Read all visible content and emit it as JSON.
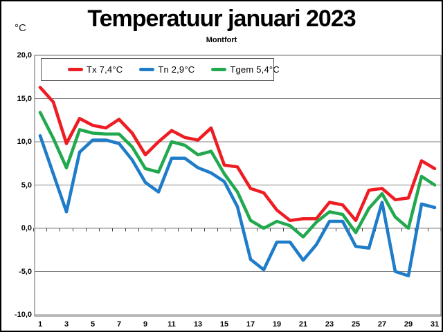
{
  "chart_data": {
    "type": "line",
    "title": "Temperatuur januari 2023",
    "subtitle": "Montfort",
    "unit_label": "°C",
    "x": [
      1,
      2,
      3,
      4,
      5,
      6,
      7,
      8,
      9,
      10,
      11,
      12,
      13,
      14,
      15,
      16,
      17,
      18,
      19,
      20,
      21,
      22,
      23,
      24,
      25,
      26,
      27,
      28,
      29,
      30,
      31
    ],
    "x_tick_labels": [
      1,
      3,
      5,
      7,
      9,
      11,
      13,
      15,
      17,
      19,
      21,
      23,
      25,
      27,
      29,
      31
    ],
    "xlabel": "",
    "ylabel": "°C",
    "ylim": [
      -10,
      20
    ],
    "grid": true,
    "legend_position": "top-left-inside",
    "y_ticks": [
      {
        "value": 20,
        "label": "20,0"
      },
      {
        "value": 15,
        "label": "15,0"
      },
      {
        "value": 10,
        "label": "10,0"
      },
      {
        "value": 5,
        "label": "5,0"
      },
      {
        "value": 0,
        "label": "0,0"
      },
      {
        "value": -5,
        "label": "-5,0"
      },
      {
        "value": -10,
        "label": "-10,0"
      }
    ],
    "series": [
      {
        "name": "Tx",
        "legend_label": "Tx 7,4°C",
        "mean": "7,4°C",
        "color": "#ee1c23",
        "values": [
          16.3,
          14.6,
          9.8,
          12.7,
          11.9,
          11.6,
          12.6,
          11.0,
          8.5,
          10.0,
          11.3,
          10.5,
          10.2,
          11.6,
          7.3,
          7.1,
          4.6,
          4.1,
          2.1,
          0.9,
          1.1,
          1.1,
          3.0,
          2.7,
          0.9,
          4.4,
          4.6,
          3.3,
          3.5,
          7.8,
          6.9
        ]
      },
      {
        "name": "Tn",
        "legend_label": "Tn 2,9°C",
        "mean": "2,9°C",
        "color": "#1e7cc8",
        "values": [
          10.7,
          6.3,
          1.9,
          8.8,
          10.2,
          10.2,
          9.8,
          7.9,
          5.3,
          4.2,
          8.1,
          8.1,
          7.0,
          6.4,
          5.4,
          2.5,
          -3.6,
          -4.8,
          -1.6,
          -1.6,
          -3.7,
          -1.9,
          0.8,
          0.8,
          -2.1,
          -2.3,
          3.0,
          -5.0,
          -5.5,
          2.8,
          2.4
        ]
      },
      {
        "name": "Tgem",
        "legend_label": "Tgem 5,4°C",
        "mean": "5,4°C",
        "color": "#22a94f",
        "values": [
          13.4,
          10.4,
          7.0,
          11.4,
          11.0,
          10.9,
          10.9,
          9.4,
          6.9,
          6.5,
          10.0,
          9.6,
          8.5,
          8.9,
          6.3,
          4.2,
          0.9,
          0.0,
          0.8,
          0.3,
          -1.0,
          0.7,
          1.9,
          1.6,
          -0.5,
          2.3,
          4.0,
          1.3,
          0.0,
          6.0,
          5.0
        ]
      }
    ],
    "frame_color": "#808080",
    "tick_color": "#404040"
  }
}
